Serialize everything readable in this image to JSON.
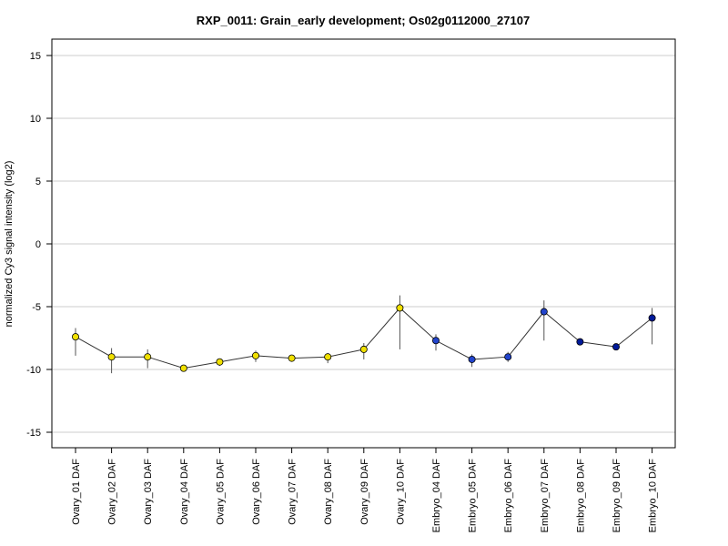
{
  "chart_data": {
    "type": "line",
    "title": "RXP_0011: Grain_early development; Os02g0112000_27107",
    "xlabel": "",
    "ylabel": "normalized Cy3 signal intensity (log2)",
    "ylim": [
      -16,
      16
    ],
    "yticks": [
      -15,
      -10,
      -5,
      0,
      5,
      10,
      15
    ],
    "grid": true,
    "categories": [
      "Ovary_01 DAF",
      "Ovary_02 DAF",
      "Ovary_03 DAF",
      "Ovary_04 DAF",
      "Ovary_05 DAF",
      "Ovary_06 DAF",
      "Ovary_07 DAF",
      "Ovary_08 DAF",
      "Ovary_09 DAF",
      "Ovary_10 DAF",
      "Embryo_04 DAF",
      "Embryo_05 DAF",
      "Embryo_06 DAF",
      "Embryo_07 DAF",
      "Embryo_08 DAF",
      "Embryo_09 DAF",
      "Embryo_10 DAF"
    ],
    "series": [
      {
        "values": [
          -7.4,
          -9.0,
          -9.0,
          -9.9,
          -9.4,
          -8.9,
          -9.1,
          -9.0,
          -8.4,
          -5.1,
          -7.7,
          -9.2,
          -9.0,
          -5.4,
          -7.8,
          -8.2,
          -5.9
        ],
        "error_low": [
          -8.9,
          -10.3,
          -9.9,
          -9.9,
          -9.7,
          -9.4,
          -9.3,
          -9.5,
          -9.2,
          -8.4,
          -8.5,
          -9.8,
          -9.4,
          -7.7,
          -7.8,
          -8.3,
          -8.0
        ],
        "error_high": [
          -6.7,
          -8.3,
          -8.4,
          -9.7,
          -9.2,
          -8.5,
          -8.9,
          -8.7,
          -7.9,
          -4.1,
          -7.2,
          -8.8,
          -8.6,
          -4.5,
          -7.7,
          -8.1,
          -5.1
        ],
        "point_colors": [
          "#f0e000",
          "#f0e000",
          "#f0e000",
          "#f0e000",
          "#f0e000",
          "#f0e000",
          "#f0e000",
          "#f0e000",
          "#f0e000",
          "#f0e000",
          "#2244cc",
          "#2244cc",
          "#2244cc",
          "#2244cc",
          "#001a99",
          "#001a99",
          "#001a99"
        ]
      }
    ]
  }
}
